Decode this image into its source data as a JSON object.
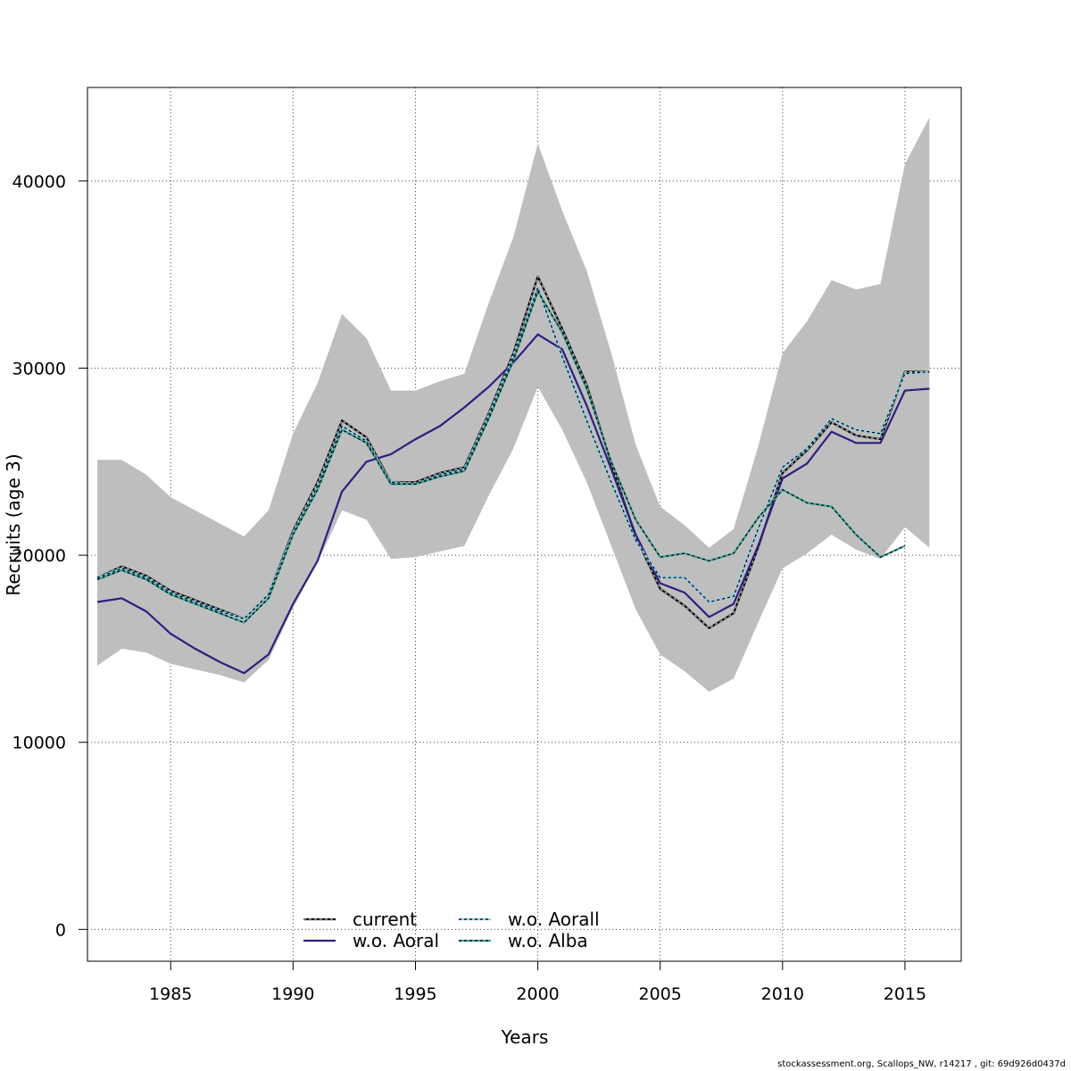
{
  "chart_data": {
    "type": "line",
    "title": "",
    "xlabel": "Years",
    "ylabel": "Recruits (age 3)",
    "xlim": [
      1981.6,
      2017.3
    ],
    "ylim": [
      -1700,
      45000
    ],
    "x_ticks": [
      1985,
      1990,
      1995,
      2000,
      2005,
      2010,
      2015
    ],
    "y_ticks": [
      0,
      10000,
      20000,
      30000,
      40000
    ],
    "grid": true,
    "legend_position": "bottom-center",
    "band": {
      "color": "#bebebe",
      "x": [
        1982,
        1983,
        1984,
        1985,
        1986,
        1987,
        1988,
        1989,
        1990,
        1991,
        1992,
        1993,
        1994,
        1995,
        1996,
        1997,
        1998,
        1999,
        2000,
        2001,
        2002,
        2003,
        2004,
        2005,
        2006,
        2007,
        2008,
        2009,
        2010,
        2011,
        2012,
        2013,
        2014,
        2015,
        2016
      ],
      "upper": [
        25100,
        25100,
        24300,
        23100,
        22400,
        21700,
        21000,
        22400,
        26500,
        29200,
        32900,
        31600,
        28800,
        28800,
        29300,
        29700,
        33500,
        37000,
        42000,
        38400,
        35200,
        30800,
        25900,
        22600,
        21600,
        20400,
        21400,
        25800,
        30800,
        32500,
        34700,
        34200,
        34500,
        40900,
        43400
      ],
      "lower": [
        14100,
        15000,
        14800,
        14200,
        13900,
        13600,
        13200,
        14400,
        17200,
        19600,
        22400,
        21900,
        19800,
        19900,
        20200,
        20500,
        23200,
        25700,
        29000,
        26700,
        23900,
        20500,
        17100,
        14700,
        13800,
        12700,
        13400,
        16400,
        19300,
        20100,
        21100,
        20300,
        19800,
        21500,
        20400
      ]
    },
    "series": [
      {
        "name": "current",
        "color": "#000000",
        "dash": "",
        "overlay": "#bebebe",
        "x": [
          1982,
          1983,
          1984,
          1985,
          1986,
          1987,
          1988,
          1989,
          1990,
          1991,
          1992,
          1993,
          1994,
          1995,
          1996,
          1997,
          1998,
          1999,
          2000,
          2001,
          2002,
          2003,
          2004,
          2005,
          2006,
          2007,
          2008,
          2009,
          2010,
          2011,
          2012,
          2013,
          2014,
          2015,
          2016
        ],
        "values": [
          18800,
          19400,
          18900,
          18100,
          17600,
          17100,
          16600,
          17900,
          21300,
          23900,
          27200,
          26300,
          23900,
          23900,
          24400,
          24700,
          27600,
          30800,
          34900,
          32100,
          29100,
          24900,
          21000,
          18200,
          17300,
          16100,
          16900,
          20400,
          24400,
          25600,
          27100,
          26400,
          26200,
          29800,
          29800
        ]
      },
      {
        "name": "w.o. Aoral",
        "color": "#2e1e82",
        "dash": "",
        "overlay": "",
        "x": [
          1982,
          1983,
          1984,
          1985,
          1986,
          1987,
          1988,
          1989,
          1990,
          1991,
          1992,
          1993,
          1994,
          1995,
          1996,
          1997,
          1998,
          1999,
          2000,
          2001,
          2002,
          2003,
          2004,
          2005,
          2006,
          2007,
          2008,
          2009,
          2010,
          2011,
          2012,
          2013,
          2014,
          2015,
          2016
        ],
        "values": [
          17500,
          17700,
          17000,
          15800,
          15000,
          14300,
          13700,
          14700,
          17400,
          19700,
          23400,
          25000,
          25400,
          26200,
          26900,
          27900,
          29000,
          30300,
          31800,
          31000,
          28000,
          24600,
          21100,
          18500,
          18000,
          16700,
          17400,
          20500,
          24100,
          24900,
          26600,
          26000,
          26000,
          28800,
          28900
        ]
      },
      {
        "name": "w.o. Aorall",
        "color": "#87ceeb",
        "dash": "3,3",
        "overlay": "#000000",
        "x": [
          1982,
          1983,
          1984,
          1985,
          1986,
          1987,
          1988,
          1989,
          1990,
          1991,
          1992,
          1993,
          1994,
          1995,
          1996,
          1997,
          1998,
          1999,
          2000,
          2001,
          2002,
          2003,
          2004,
          2005,
          2006,
          2007,
          2008,
          2009,
          2010,
          2011,
          2012,
          2013,
          2014,
          2015,
          2016
        ],
        "values": [
          18800,
          19300,
          18800,
          18000,
          17500,
          17000,
          16600,
          17900,
          21200,
          23700,
          26900,
          26100,
          23900,
          23800,
          24300,
          24600,
          27500,
          30600,
          34300,
          30600,
          27200,
          23900,
          20800,
          18800,
          18800,
          17500,
          17800,
          21400,
          24700,
          25700,
          27300,
          26700,
          26500,
          29700,
          29800
        ]
      },
      {
        "name": "w.o. Alba",
        "color": "#3aa39a",
        "dash": "3,3",
        "overlay": "#000000",
        "x": [
          1982,
          1983,
          1984,
          1985,
          1986,
          1987,
          1988,
          1989,
          1990,
          1991,
          1992,
          1993,
          1994,
          1995,
          1996,
          1997,
          1998,
          1999,
          2000,
          2001,
          2002,
          2003,
          2004,
          2005,
          2006,
          2007,
          2008,
          2009,
          2010,
          2011,
          2012,
          2013,
          2014,
          2015
        ],
        "values": [
          18700,
          19200,
          18700,
          17900,
          17400,
          16900,
          16400,
          17700,
          21100,
          23500,
          26700,
          26000,
          23800,
          23800,
          24200,
          24500,
          27300,
          30400,
          34100,
          31900,
          28900,
          25000,
          21900,
          19900,
          20100,
          19700,
          20100,
          22000,
          23500,
          22800,
          22600,
          21100,
          19900,
          20500
        ]
      }
    ]
  },
  "footer_text": "stockassessment.org, Scallops_NW, r14217 , git: 69d926d0437d"
}
